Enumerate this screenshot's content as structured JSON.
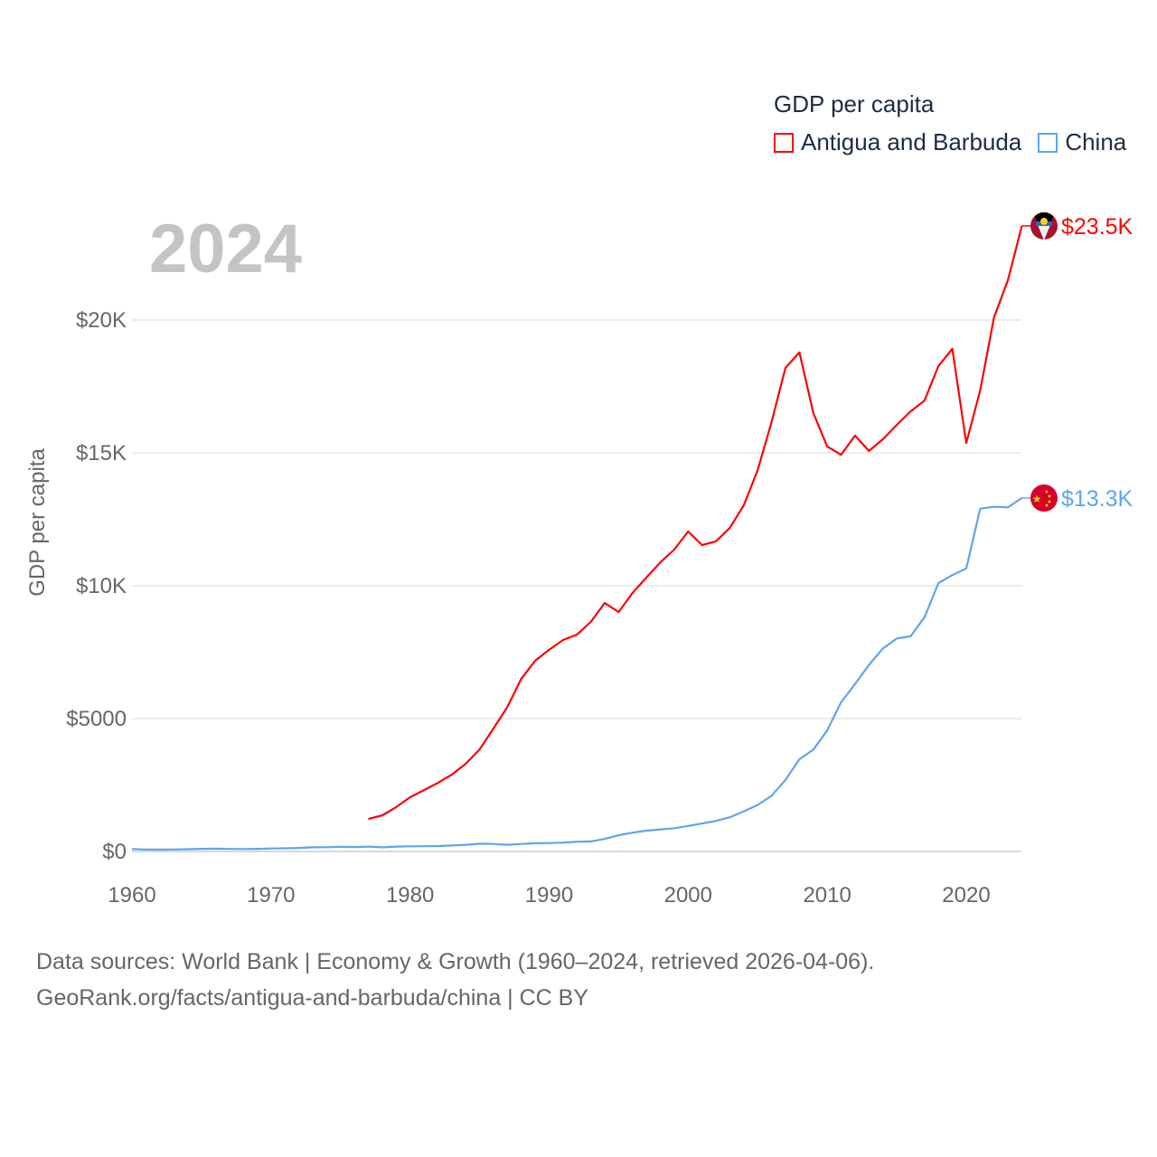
{
  "chart_data": {
    "type": "line",
    "title": "GDP per capita",
    "year_label": "2024",
    "ylabel": "GDP per capita",
    "xlabel": "",
    "xlim": [
      1960,
      2024
    ],
    "ylim": [
      0,
      23500
    ],
    "grid": true,
    "legend_placement": "top-right",
    "x_ticks": [
      {
        "value": 1960,
        "label": "1960"
      },
      {
        "value": 1970,
        "label": "1970"
      },
      {
        "value": 1980,
        "label": "1980"
      },
      {
        "value": 1990,
        "label": "1990"
      },
      {
        "value": 2000,
        "label": "2000"
      },
      {
        "value": 2010,
        "label": "2010"
      },
      {
        "value": 2020,
        "label": "2020"
      }
    ],
    "y_ticks": [
      {
        "value": 0,
        "label": "$0"
      },
      {
        "value": 5000,
        "label": "$5000"
      },
      {
        "value": 10000,
        "label": "$10K"
      },
      {
        "value": 15000,
        "label": "$15K"
      },
      {
        "value": 20000,
        "label": "$20K"
      }
    ],
    "series": [
      {
        "name": "Antigua and Barbuda",
        "color": "#ff0000",
        "flag": "antigua-and-barbuda-flag",
        "end_label": "$23.5K",
        "x": [
          1977,
          1978,
          1979,
          1980,
          1981,
          1982,
          1983,
          1984,
          1985,
          1986,
          1987,
          1988,
          1989,
          1990,
          1991,
          1992,
          1993,
          1994,
          1995,
          1996,
          1997,
          1998,
          1999,
          2000,
          2001,
          2002,
          2003,
          2004,
          2005,
          2006,
          2007,
          2008,
          2009,
          2010,
          2011,
          2012,
          2013,
          2014,
          2015,
          2016,
          2017,
          2018,
          2019,
          2020,
          2021,
          2022,
          2023,
          2024
        ],
        "values": [
          1220,
          1360,
          1670,
          2040,
          2310,
          2580,
          2890,
          3300,
          3840,
          4630,
          5440,
          6500,
          7180,
          7590,
          7960,
          8160,
          8640,
          9350,
          9010,
          9730,
          10310,
          10880,
          11360,
          12040,
          11530,
          11670,
          12180,
          13030,
          14350,
          16160,
          18200,
          18780,
          16500,
          15240,
          14930,
          15650,
          15070,
          15510,
          16050,
          16560,
          16970,
          18270,
          18910,
          15370,
          17350,
          20100,
          21500,
          23540
        ]
      },
      {
        "name": "China",
        "color": "#5ea5ee",
        "flag": "china-flag",
        "end_label": "$13.3K",
        "x": [
          1960,
          1961,
          1962,
          1963,
          1964,
          1965,
          1966,
          1967,
          1968,
          1969,
          1970,
          1971,
          1972,
          1973,
          1974,
          1975,
          1976,
          1977,
          1978,
          1979,
          1980,
          1981,
          1982,
          1983,
          1984,
          1985,
          1986,
          1987,
          1988,
          1989,
          1990,
          1991,
          1992,
          1993,
          1994,
          1995,
          1996,
          1997,
          1998,
          1999,
          2000,
          2001,
          2002,
          2003,
          2004,
          2005,
          2006,
          2007,
          2008,
          2009,
          2010,
          2011,
          2012,
          2013,
          2014,
          2015,
          2016,
          2017,
          2018,
          2019,
          2020,
          2021,
          2022,
          2023,
          2024
        ],
        "values": [
          89,
          76,
          70,
          74,
          85,
          98,
          104,
          96,
          91,
          100,
          113,
          119,
          132,
          157,
          160,
          178,
          165,
          185,
          156,
          183,
          195,
          197,
          203,
          225,
          250,
          294,
          282,
          251,
          284,
          311,
          318,
          333,
          366,
          377,
          473,
          610,
          709,
          782,
          829,
          873,
          959,
          1053,
          1149,
          1289,
          1509,
          1753,
          2099,
          2694,
          3468,
          3832,
          4550,
          5614,
          6301,
          7020,
          7636,
          8016,
          8094,
          8817,
          10100,
          10400,
          10650,
          12900,
          12970,
          12950,
          13300
        ]
      }
    ]
  },
  "footer": {
    "line1": "Data sources: World Bank | Economy & Growth (1960–2024, retrieved 2026-04-06).",
    "line2": "GeoRank.org/facts/antigua-and-barbuda/china | CC BY"
  }
}
